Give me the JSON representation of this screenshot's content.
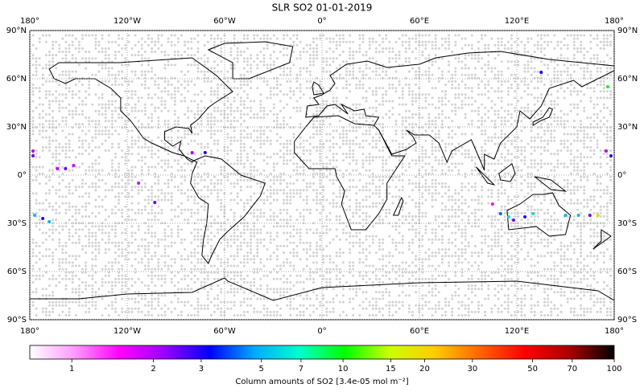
{
  "chart_data": {
    "type": "map",
    "title": "SLR SO2 01-01-2019",
    "xlim": [
      -180,
      180
    ],
    "ylim": [
      -90,
      90
    ],
    "grid": true,
    "xticks": [
      {
        "value": -180,
        "label": "180°"
      },
      {
        "value": -120,
        "label": "120°W"
      },
      {
        "value": -60,
        "label": "60°W"
      },
      {
        "value": 0,
        "label": "0°"
      },
      {
        "value": 60,
        "label": "60°E"
      },
      {
        "value": 120,
        "label": "120°E"
      },
      {
        "value": 180,
        "label": "180°"
      }
    ],
    "yticks": [
      {
        "value": 90,
        "label": "90°N"
      },
      {
        "value": 60,
        "label": "60°N"
      },
      {
        "value": 30,
        "label": "30°N"
      },
      {
        "value": 0,
        "label": "0°"
      },
      {
        "value": -30,
        "label": "30°S"
      },
      {
        "value": -60,
        "label": "60°S"
      },
      {
        "value": -90,
        "label": "90°S"
      }
    ],
    "points": [
      {
        "lon": -178,
        "lat": 15,
        "value": 2
      },
      {
        "lon": -178,
        "lat": 12,
        "value": 2.5
      },
      {
        "lon": -163,
        "lat": 4,
        "value": 2
      },
      {
        "lon": -158,
        "lat": 4,
        "value": 2.5
      },
      {
        "lon": -153,
        "lat": 6,
        "value": 1.8
      },
      {
        "lon": -177,
        "lat": -25,
        "value": 5
      },
      {
        "lon": -172,
        "lat": -27,
        "value": 3
      },
      {
        "lon": -168,
        "lat": -29,
        "value": 5
      },
      {
        "lon": -113,
        "lat": -5,
        "value": 1.8
      },
      {
        "lon": -103,
        "lat": -17,
        "value": 2.5
      },
      {
        "lon": -80,
        "lat": 14,
        "value": 2
      },
      {
        "lon": -72,
        "lat": 14,
        "value": 3
      },
      {
        "lon": 105,
        "lat": -18,
        "value": 1.5
      },
      {
        "lon": 110,
        "lat": -24,
        "value": 4
      },
      {
        "lon": 115,
        "lat": -26,
        "value": 6
      },
      {
        "lon": 118,
        "lat": -28,
        "value": 2.5
      },
      {
        "lon": 125,
        "lat": -26,
        "value": 3
      },
      {
        "lon": 130,
        "lat": -24,
        "value": 6
      },
      {
        "lon": 150,
        "lat": -25,
        "value": 5
      },
      {
        "lon": 158,
        "lat": -25,
        "value": 5
      },
      {
        "lon": 165,
        "lat": -25,
        "value": 2.5
      },
      {
        "lon": 170,
        "lat": -25,
        "value": 20
      },
      {
        "lon": 175,
        "lat": 15,
        "value": 2
      },
      {
        "lon": 178,
        "lat": 12,
        "value": 3
      },
      {
        "lon": 135,
        "lat": 64,
        "value": 3
      },
      {
        "lon": 176,
        "lat": 55,
        "value": 10
      }
    ],
    "colorbar": {
      "label": "Column amounts of SO2 [3.4e-05 mol m⁻²]",
      "log": true,
      "lim": [
        0.7,
        100
      ],
      "ticks": [
        1,
        2,
        3,
        5,
        7,
        10,
        15,
        20,
        30,
        50,
        70,
        100
      ],
      "colors": [
        "#ffffff",
        "#ff99ff",
        "#ff00ff",
        "#9900ff",
        "#0000ff",
        "#00aaff",
        "#00ffcc",
        "#00ff00",
        "#ccff00",
        "#ffcc00",
        "#ff6600",
        "#ff0000",
        "#aa0000",
        "#000000"
      ]
    }
  }
}
